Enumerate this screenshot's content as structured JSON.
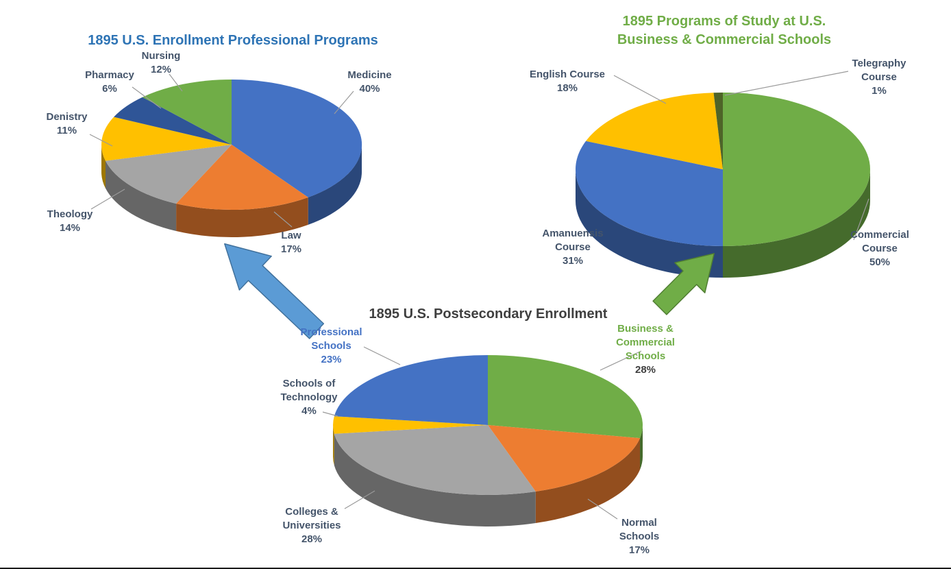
{
  "page": {
    "background": "#FFFFFF"
  },
  "chart_data": [
    {
      "type": "pie",
      "variant": "3d",
      "title": "1895 U.S. Enrollment Professional Programs",
      "title_color": "#2E74B5",
      "label_color": "#44546A",
      "start_angle_deg": -90,
      "direction": "clockwise",
      "legend": "none",
      "slices": [
        {
          "label": "Medicine",
          "value": 40,
          "pct_text": "40%",
          "color": "#4472C4"
        },
        {
          "label": "Law",
          "value": 17,
          "pct_text": "17%",
          "color": "#ED7D31"
        },
        {
          "label": "Theology",
          "value": 14,
          "pct_text": "14%",
          "color": "#A5A5A5"
        },
        {
          "label": "Denistry",
          "value": 11,
          "pct_text": "11%",
          "color": "#FFC000"
        },
        {
          "label": "Pharmacy",
          "value": 6,
          "pct_text": "6%",
          "color": "#2F5597"
        },
        {
          "label": "Nursing",
          "value": 12,
          "pct_text": "12%",
          "color": "#70AD47"
        }
      ]
    },
    {
      "type": "pie",
      "variant": "3d",
      "title": "1895 Programs of Study at U.S. Business & Commercial Schools",
      "title_lines": [
        "1895 Programs of Study at U.S.",
        "Business & Commercial Schools"
      ],
      "title_color": "#70AD47",
      "label_color": "#44546A",
      "start_angle_deg": -90,
      "direction": "clockwise",
      "legend": "none",
      "slices": [
        {
          "label": "Commercial Course",
          "value": 50,
          "pct_text": "50%",
          "color": "#70AD47"
        },
        {
          "label": "Amanuensis Course",
          "value": 31,
          "pct_text": "31%",
          "color": "#4472C4"
        },
        {
          "label": "English Course",
          "value": 18,
          "pct_text": "18%",
          "color": "#FFC000"
        },
        {
          "label": "Telegraphy Course",
          "value": 1,
          "pct_text": "1%",
          "color": "#4E6428"
        }
      ]
    },
    {
      "type": "pie",
      "variant": "3d",
      "title": "1895 U.S. Postsecondary Enrollment",
      "title_color": "#3F3F3F",
      "label_color": "#44546A",
      "start_angle_deg": -90,
      "direction": "clockwise",
      "legend": "none",
      "slices": [
        {
          "label": "Business & Commercial Schools",
          "value": 28,
          "pct_text": "28%",
          "color": "#70AD47",
          "label_color": "#70AD47",
          "pct_color": "#3F3F3F"
        },
        {
          "label": "Normal Schools",
          "value": 17,
          "pct_text": "17%",
          "color": "#ED7D31",
          "label_color": "#44546A",
          "pct_color": "#44546A"
        },
        {
          "label": "Colleges & Universities",
          "value": 28,
          "pct_text": "28%",
          "color": "#A5A5A5",
          "label_color": "#44546A",
          "pct_color": "#44546A"
        },
        {
          "label": "Schools of Technology",
          "value": 4,
          "pct_text": "4%",
          "color": "#FFC000",
          "label_color": "#44546A",
          "pct_color": "#44546A"
        },
        {
          "label": "Professional Schools",
          "value": 23,
          "pct_text": "23%",
          "color": "#4472C4",
          "label_color": "#4472C4",
          "pct_color": "#4472C4"
        }
      ]
    }
  ],
  "connectors": {
    "blue_arrow": {
      "fill": "#5B9BD5",
      "border": "#41719C"
    },
    "green_arrow": {
      "fill": "#70AD47",
      "border": "#507E32"
    }
  }
}
